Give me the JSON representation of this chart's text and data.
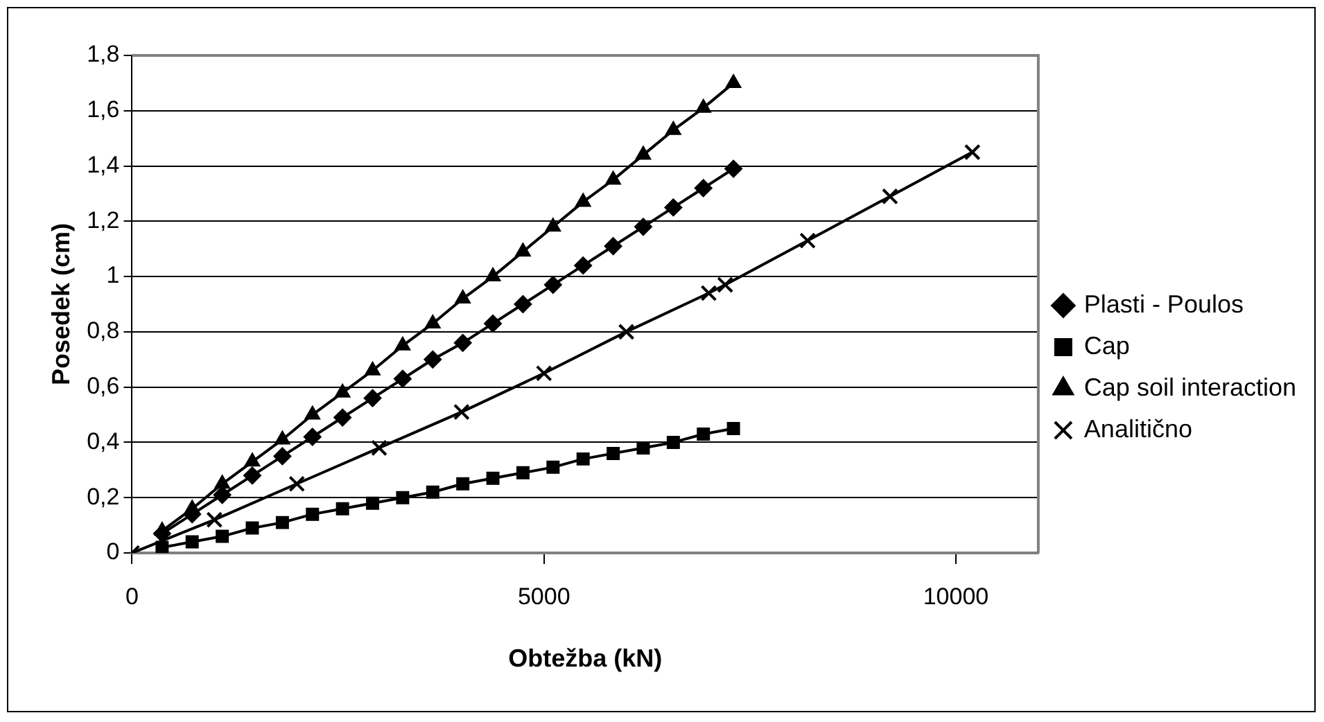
{
  "chart_data": {
    "type": "line",
    "xlabel": "Obtežba (kN)",
    "ylabel": "Posedek (cm)",
    "xlim": [
      0,
      11000
    ],
    "xticks": [
      0,
      5000,
      10000
    ],
    "ylim": [
      0,
      1.8
    ],
    "yticks": [
      0,
      {
        "value": 0.2,
        "label": "0,2"
      },
      {
        "value": 0.4,
        "label": "0,4"
      },
      {
        "value": 0.6,
        "label": "0,6"
      },
      {
        "value": 0.8,
        "label": "0,8"
      },
      1,
      {
        "value": 1.2,
        "label": "1,2"
      },
      {
        "value": 1.4,
        "label": "1,4"
      },
      {
        "value": 1.6,
        "label": "1,6"
      },
      {
        "value": 1.8,
        "label": "1,8"
      }
    ],
    "grid": "y",
    "legend": "right",
    "line_style": "solid",
    "series": [
      {
        "name": "Plasti - Poulos",
        "color": "#000000",
        "marker": "diamond",
        "x": [
          365,
          730,
          1095,
          1460,
          1825,
          2190,
          2555,
          2920,
          3285,
          3650,
          4015,
          4380,
          4745,
          5110,
          5475,
          5840,
          6205,
          6570,
          6935,
          7300
        ],
        "values": [
          0.07,
          0.14,
          0.21,
          0.28,
          0.35,
          0.42,
          0.49,
          0.56,
          0.63,
          0.7,
          0.76,
          0.83,
          0.9,
          0.97,
          1.04,
          1.11,
          1.18,
          1.25,
          1.32,
          1.39
        ]
      },
      {
        "name": "Cap",
        "color": "#000000",
        "marker": "square",
        "x": [
          365,
          730,
          1095,
          1460,
          1825,
          2190,
          2555,
          2920,
          3285,
          3650,
          4015,
          4380,
          4745,
          5110,
          5475,
          5840,
          6205,
          6570,
          6935,
          7300
        ],
        "values": [
          0.02,
          0.04,
          0.06,
          0.09,
          0.11,
          0.14,
          0.16,
          0.18,
          0.2,
          0.22,
          0.25,
          0.27,
          0.29,
          0.31,
          0.34,
          0.36,
          0.38,
          0.4,
          0.43,
          0.45
        ]
      },
      {
        "name": "Cap soil interaction",
        "color": "#000000",
        "marker": "triangle",
        "x": [
          365,
          730,
          1095,
          1460,
          1825,
          2190,
          2555,
          2920,
          3285,
          3650,
          4015,
          4380,
          4745,
          5110,
          5475,
          5840,
          6205,
          6570,
          6935,
          7300
        ],
        "values": [
          0.08,
          0.16,
          0.25,
          0.33,
          0.41,
          0.5,
          0.58,
          0.66,
          0.75,
          0.83,
          0.92,
          1.0,
          1.09,
          1.18,
          1.27,
          1.35,
          1.44,
          1.53,
          1.61,
          1.7
        ]
      },
      {
        "name": "Analitično",
        "color": "#000000",
        "marker": "cross",
        "x": [
          0,
          1000,
          2000,
          3000,
          4000,
          5000,
          6000,
          7000,
          7200,
          8200,
          9200,
          10200
        ],
        "values": [
          0,
          0.12,
          0.25,
          0.38,
          0.51,
          0.65,
          0.8,
          0.94,
          0.97,
          1.13,
          1.29,
          1.45
        ]
      }
    ]
  }
}
